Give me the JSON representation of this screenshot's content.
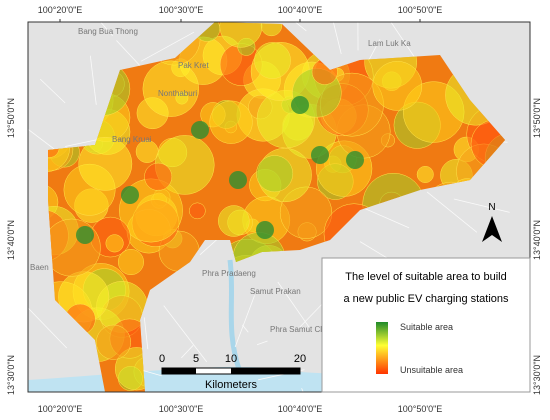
{
  "map": {
    "graticule": {
      "top": [
        "100°20'0\"E",
        "100°30'0\"E",
        "100°40'0\"E",
        "100°50'0\"E"
      ],
      "left": [
        "13°50'0\"N",
        "13°40'0\"N",
        "13°30'0\"N"
      ]
    },
    "places": [
      "Bang Bua Thong",
      "Pak Kret",
      "Lam Luk Ka",
      "Nonthaburi",
      "Bang Kruai",
      "Phra Pradaeng",
      "Samut Prakan",
      "Phra Samut Chedi",
      "Baen"
    ],
    "legend": {
      "title_lines": [
        "The level of suitable area to build",
        "a new public EV charging stations"
      ],
      "high": "Suitable area",
      "low": "Unsuitable area"
    },
    "scale_bar": {
      "labels": [
        "0",
        "5",
        "10",
        "20"
      ],
      "unit": "Kilometers"
    },
    "north": "N"
  }
}
